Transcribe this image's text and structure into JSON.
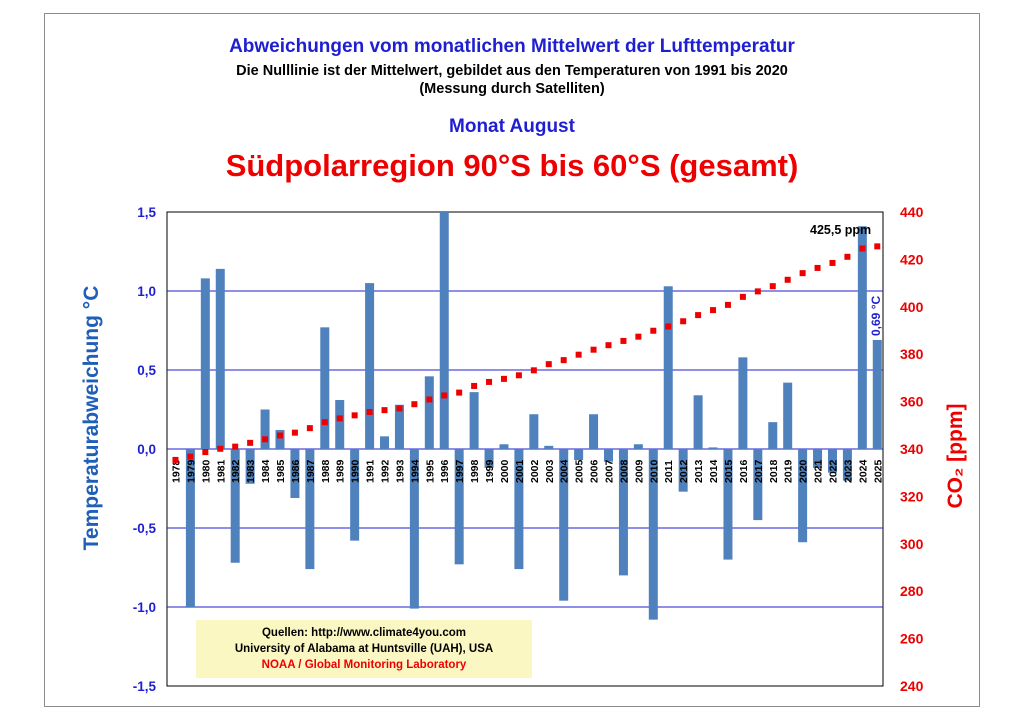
{
  "header": {
    "title": "Abweichungen vom monatlichen Mittelwert der Lufttemperatur",
    "subtitle_line1": "Die Nulllinie ist der Mittelwert, gebildet aus den Temperaturen von 1991 bis 2020",
    "subtitle_line2": "(Messung durch Satelliten)",
    "month": "Monat August",
    "region": "Südpolarregion 90°S bis 60°S (gesamt)"
  },
  "sources": {
    "line1": "Quellen: http://www.climate4you.com",
    "line2": "University of Alabama at Huntsville (UAH), USA",
    "line3": "NOAA / Global Monitoring Laboratory"
  },
  "colors": {
    "bar": "#4f81bd",
    "co2": "#ee0000",
    "axis_left": "#1f1fd2",
    "grid": "#1f1fd2"
  },
  "chart_data": {
    "type": "bar",
    "title": "Südpolarregion 90°S bis 60°S (gesamt)",
    "ylabel": "Temperaturabweichung °C",
    "ylabel2": "CO₂ [ppm]",
    "ylim": [
      -1.5,
      1.5
    ],
    "ylim2": [
      240,
      440
    ],
    "yticks": [
      "-1,5",
      "-1,0",
      "-0,5",
      "0,0",
      "0,5",
      "1,0",
      "1,5"
    ],
    "yticks2": [
      "240",
      "260",
      "280",
      "300",
      "320",
      "340",
      "360",
      "380",
      "400",
      "420",
      "440"
    ],
    "grid": true,
    "categories": [
      "1978",
      "1979",
      "1980",
      "1981",
      "1982",
      "1983",
      "1984",
      "1985",
      "1986",
      "1987",
      "1988",
      "1989",
      "1990",
      "1991",
      "1992",
      "1993",
      "1994",
      "1995",
      "1996",
      "1997",
      "1998",
      "1999",
      "2000",
      "2001",
      "2002",
      "2003",
      "2004",
      "2005",
      "2006",
      "2007",
      "2008",
      "2009",
      "2010",
      "2011",
      "2012",
      "2013",
      "2014",
      "2015",
      "2016",
      "2017",
      "2018",
      "2019",
      "2020",
      "2021",
      "2022",
      "2023",
      "2024",
      "2025"
    ],
    "series": [
      {
        "name": "Temperaturabweichung",
        "axis": "left",
        "values": [
          null,
          -1.0,
          1.08,
          1.14,
          -0.72,
          -0.22,
          0.25,
          0.12,
          -0.31,
          -0.76,
          0.77,
          0.31,
          -0.58,
          1.05,
          0.08,
          0.28,
          -1.01,
          0.46,
          1.5,
          -0.73,
          0.36,
          -0.12,
          0.03,
          -0.76,
          0.22,
          0.02,
          -0.96,
          -0.07,
          0.22,
          -0.08,
          -0.8,
          0.03,
          -1.08,
          1.03,
          -0.27,
          0.34,
          0.01,
          -0.7,
          0.58,
          -0.45,
          0.17,
          0.42,
          -0.59,
          -0.12,
          -0.15,
          -0.2,
          1.41,
          0.69
        ]
      },
      {
        "name": "CO2",
        "axis": "right",
        "values": [
          335.4,
          336.8,
          338.7,
          340.1,
          341.0,
          342.6,
          344.1,
          345.7,
          346.9,
          348.8,
          351.3,
          352.9,
          354.2,
          355.6,
          356.4,
          357.1,
          358.9,
          360.9,
          362.6,
          363.8,
          366.6,
          368.3,
          369.6,
          371.1,
          373.2,
          375.8,
          377.5,
          379.8,
          381.9,
          383.8,
          385.6,
          387.4,
          389.9,
          391.7,
          393.9,
          396.5,
          398.6,
          400.8,
          404.2,
          406.5,
          408.7,
          411.4,
          414.2,
          416.4,
          418.5,
          421.1,
          424.6,
          425.5
        ]
      }
    ],
    "annotations": {
      "co2_last": "425,5 ppm",
      "temp_last": "0,69 °C"
    }
  }
}
